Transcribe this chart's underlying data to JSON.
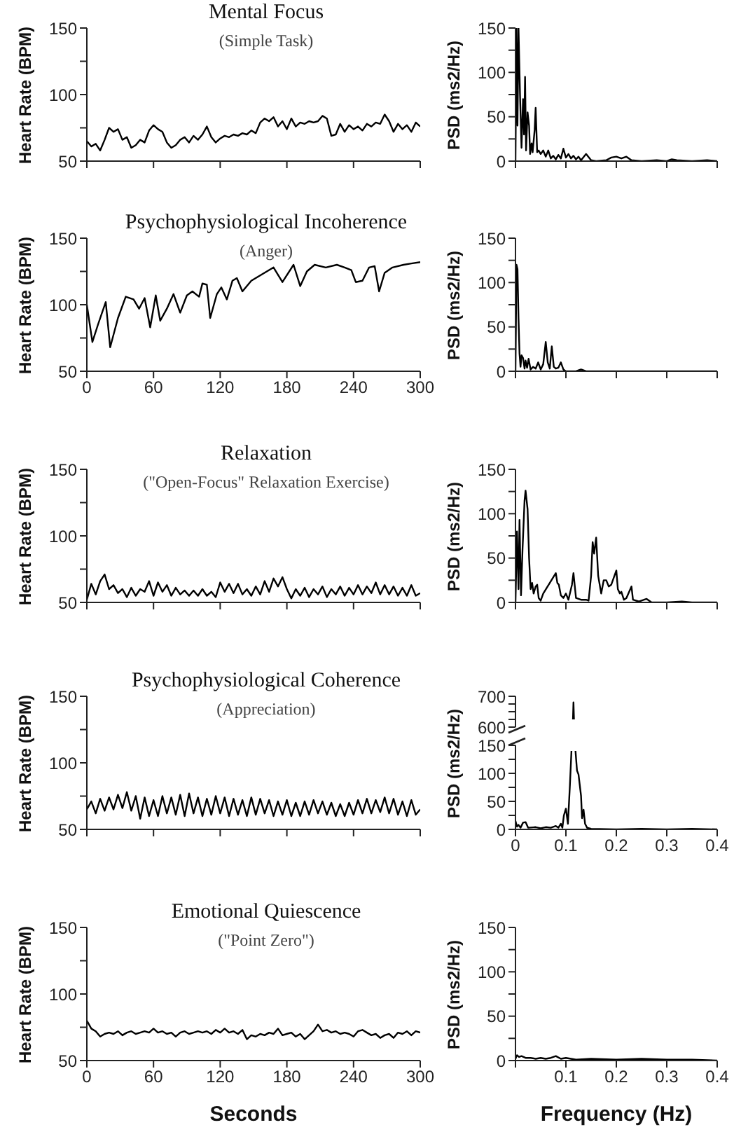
{
  "chart_data": [
    {
      "type": "line",
      "title": "Mental Focus",
      "subtitle": "(Simple Task)",
      "ylabel": "Heart Rate (BPM)",
      "color": "#000000",
      "xlim": [
        0,
        300
      ],
      "xticks": [
        0,
        60,
        120,
        180,
        240,
        300
      ],
      "ylim": [
        50,
        150
      ],
      "yticks": [
        50,
        {
          "value": 75,
          "label": null
        },
        100,
        {
          "value": 125,
          "label": null
        },
        150
      ],
      "tick_labels": "y",
      "x": [
        0,
        4,
        8,
        12,
        16,
        20,
        24,
        28,
        32,
        36,
        40,
        44,
        48,
        52,
        56,
        60,
        64,
        68,
        72,
        76,
        80,
        84,
        88,
        92,
        96,
        100,
        104,
        108,
        112,
        116,
        120,
        124,
        128,
        132,
        136,
        140,
        144,
        148,
        152,
        156,
        160,
        164,
        168,
        172,
        176,
        180,
        184,
        188,
        192,
        196,
        200,
        204,
        208,
        212,
        216,
        220,
        224,
        228,
        232,
        236,
        240,
        244,
        248,
        252,
        256,
        260,
        264,
        268,
        272,
        276,
        280,
        284,
        288,
        292,
        296,
        300
      ],
      "values": [
        65,
        61,
        63,
        58,
        66,
        75,
        72,
        74,
        66,
        68,
        60,
        62,
        66,
        64,
        73,
        77,
        74,
        72,
        64,
        60,
        62,
        66,
        68,
        64,
        69,
        66,
        70,
        76,
        68,
        64,
        67,
        69,
        68,
        70,
        69,
        71,
        70,
        73,
        71,
        79,
        82,
        80,
        83,
        76,
        80,
        74,
        82,
        76,
        79,
        78,
        80,
        79,
        80,
        84,
        82,
        69,
        70,
        78,
        72,
        77,
        74,
        76,
        73,
        78,
        76,
        79,
        78,
        85,
        80,
        72,
        78,
        74,
        77,
        72,
        79,
        76
      ]
    },
    {
      "type": "line",
      "ylabel": "PSD (ms2/Hz)",
      "color": "#000000",
      "xlim": [
        0,
        0.4
      ],
      "xticks": [
        0,
        0.1,
        0.2,
        0.3,
        0.4
      ],
      "ylim": [
        0,
        150
      ],
      "yticks": [
        0,
        {
          "value": 25,
          "label": null
        },
        50,
        {
          "value": 75,
          "label": null
        },
        100,
        {
          "value": 125,
          "label": null
        },
        150
      ],
      "tick_labels": "y",
      "x": [
        0,
        0.002,
        0.004,
        0.006,
        0.009,
        0.012,
        0.015,
        0.017,
        0.019,
        0.021,
        0.024,
        0.027,
        0.029,
        0.032,
        0.034,
        0.038,
        0.04,
        0.043,
        0.046,
        0.05,
        0.055,
        0.06,
        0.065,
        0.07,
        0.075,
        0.08,
        0.085,
        0.09,
        0.095,
        0.1,
        0.105,
        0.11,
        0.115,
        0.12,
        0.125,
        0.13,
        0.14,
        0.15,
        0.16,
        0.18,
        0.19,
        0.2,
        0.21,
        0.22,
        0.23,
        0.25,
        0.28,
        0.3,
        0.31,
        0.32,
        0.35,
        0.38,
        0.4
      ],
      "values": [
        0,
        150,
        40,
        150,
        75,
        15,
        70,
        30,
        95,
        12,
        55,
        40,
        8,
        20,
        10,
        35,
        60,
        10,
        12,
        8,
        12,
        5,
        12,
        3,
        6,
        2,
        7,
        3,
        14,
        4,
        8,
        3,
        6,
        2,
        5,
        1,
        8,
        1,
        0,
        1,
        4,
        5,
        3,
        5,
        1,
        0,
        1,
        0,
        2,
        1,
        0,
        1,
        0
      ]
    },
    {
      "type": "line",
      "title": "Psychophysiological Incoherence",
      "subtitle": "(Anger)",
      "ylabel": "Heart Rate (BPM)",
      "color": "#000000",
      "xlim": [
        0,
        300
      ],
      "xticks": [
        0,
        60,
        120,
        180,
        240,
        300
      ],
      "ylim": [
        50,
        150
      ],
      "yticks": [
        50,
        {
          "value": 75,
          "label": null
        },
        100,
        {
          "value": 125,
          "label": null
        },
        150
      ],
      "x": [
        0,
        5,
        10,
        17,
        21,
        28,
        35,
        42,
        47,
        52,
        57,
        62,
        66,
        72,
        78,
        84,
        90,
        95,
        101,
        104,
        108,
        111,
        117,
        121,
        126,
        131,
        135,
        140,
        148,
        158,
        168,
        176,
        186,
        192,
        198,
        205,
        215,
        225,
        232,
        238,
        242,
        248,
        254,
        259,
        263,
        268,
        275,
        285,
        292,
        300
      ],
      "values": [
        100,
        72,
        85,
        102,
        68,
        90,
        106,
        104,
        97,
        105,
        83,
        107,
        88,
        97,
        108,
        94,
        107,
        110,
        106,
        116,
        115,
        90,
        108,
        113,
        104,
        118,
        120,
        110,
        118,
        123,
        128,
        117,
        130,
        114,
        125,
        130,
        128,
        130,
        128,
        126,
        117,
        118,
        128,
        129,
        110,
        124,
        128,
        130,
        131,
        132
      ]
    },
    {
      "type": "line",
      "ylabel": "PSD (ms2/Hz)",
      "color": "#000000",
      "xlim": [
        0,
        0.4
      ],
      "xticks": [
        0,
        0.1,
        0.2,
        0.3,
        0.4
      ],
      "ylim": [
        0,
        150
      ],
      "yticks": [
        0,
        {
          "value": 25,
          "label": null
        },
        50,
        {
          "value": 75,
          "label": null
        },
        100,
        {
          "value": 125,
          "label": null
        },
        150
      ],
      "tick_labels": "y",
      "x": [
        0,
        0.002,
        0.004,
        0.006,
        0.008,
        0.01,
        0.012,
        0.015,
        0.018,
        0.02,
        0.023,
        0.026,
        0.03,
        0.035,
        0.04,
        0.045,
        0.05,
        0.055,
        0.06,
        0.064,
        0.068,
        0.072,
        0.076,
        0.08,
        0.085,
        0.09,
        0.095,
        0.1,
        0.12,
        0.13,
        0.14,
        0.4
      ],
      "values": [
        0,
        120,
        115,
        60,
        20,
        5,
        18,
        15,
        3,
        12,
        4,
        14,
        2,
        5,
        3,
        10,
        2,
        8,
        33,
        10,
        3,
        28,
        5,
        3,
        4,
        10,
        2,
        0,
        0,
        2,
        0,
        0
      ]
    },
    {
      "type": "line",
      "title": "Relaxation",
      "subtitle": "(\"Open-Focus\" Relaxation Exercise)",
      "ylabel": "Heart Rate (BPM)",
      "color": "#000000",
      "xlim": [
        0,
        300
      ],
      "xticks": [
        0,
        60,
        120,
        180,
        240,
        300
      ],
      "ylim": [
        50,
        150
      ],
      "yticks": [
        50,
        {
          "value": 75,
          "label": null
        },
        100,
        {
          "value": 125,
          "label": null
        },
        150
      ],
      "tick_labels": "y",
      "x": [
        0,
        4,
        8,
        12,
        16,
        20,
        24,
        28,
        32,
        36,
        40,
        44,
        48,
        52,
        56,
        60,
        64,
        68,
        72,
        76,
        80,
        84,
        88,
        92,
        96,
        100,
        104,
        108,
        112,
        116,
        120,
        124,
        128,
        132,
        136,
        140,
        144,
        148,
        152,
        156,
        160,
        164,
        168,
        172,
        176,
        180,
        184,
        188,
        192,
        196,
        200,
        204,
        208,
        212,
        216,
        220,
        224,
        228,
        232,
        236,
        240,
        244,
        248,
        252,
        256,
        260,
        264,
        268,
        272,
        276,
        280,
        284,
        288,
        292,
        296,
        300
      ],
      "values": [
        52,
        64,
        56,
        66,
        71,
        60,
        63,
        57,
        60,
        54,
        61,
        55,
        60,
        58,
        66,
        55,
        65,
        58,
        63,
        55,
        61,
        56,
        59,
        55,
        59,
        55,
        60,
        55,
        58,
        54,
        65,
        58,
        64,
        57,
        64,
        56,
        60,
        55,
        62,
        56,
        66,
        58,
        68,
        62,
        69,
        60,
        53,
        60,
        55,
        61,
        54,
        60,
        56,
        62,
        54,
        60,
        56,
        62,
        55,
        61,
        56,
        63,
        56,
        62,
        57,
        65,
        56,
        63,
        56,
        62,
        55,
        61,
        55,
        63,
        55,
        57
      ]
    },
    {
      "type": "line",
      "ylabel": "PSD (ms2/Hz)",
      "color": "#000000",
      "xlim": [
        0,
        0.4
      ],
      "xticks": [
        0,
        0.1,
        0.2,
        0.3,
        0.4
      ],
      "ylim": [
        0,
        150
      ],
      "yticks": [
        0,
        {
          "value": 25,
          "label": null
        },
        50,
        {
          "value": 75,
          "label": null
        },
        100,
        {
          "value": 125,
          "label": null
        },
        150
      ],
      "tick_labels": "y",
      "x": [
        0,
        0.003,
        0.006,
        0.008,
        0.011,
        0.014,
        0.018,
        0.02,
        0.024,
        0.027,
        0.03,
        0.033,
        0.036,
        0.04,
        0.043,
        0.046,
        0.05,
        0.055,
        0.08,
        0.083,
        0.086,
        0.09,
        0.095,
        0.1,
        0.105,
        0.112,
        0.115,
        0.12,
        0.13,
        0.14,
        0.145,
        0.15,
        0.153,
        0.156,
        0.16,
        0.164,
        0.17,
        0.175,
        0.18,
        0.185,
        0.19,
        0.2,
        0.203,
        0.207,
        0.21,
        0.215,
        0.22,
        0.23,
        0.233,
        0.245,
        0.26,
        0.27,
        0.3,
        0.33,
        0.35,
        0.4
      ],
      "values": [
        0,
        80,
        15,
        93,
        8,
        60,
        115,
        126,
        105,
        50,
        15,
        22,
        10,
        18,
        20,
        5,
        2,
        10,
        33,
        22,
        20,
        8,
        5,
        10,
        3,
        20,
        33,
        5,
        3,
        3,
        2,
        30,
        68,
        55,
        73,
        30,
        10,
        25,
        25,
        18,
        20,
        36,
        15,
        10,
        12,
        3,
        5,
        18,
        3,
        1,
        4,
        0,
        0,
        1,
        0,
        0
      ]
    },
    {
      "type": "line",
      "title": "Psychophysiological Coherence",
      "subtitle": "(Appreciation)",
      "ylabel": "Heart Rate (BPM)",
      "color": "#000000",
      "xlim": [
        0,
        300
      ],
      "xticks": [
        0,
        60,
        120,
        180,
        240,
        300
      ],
      "ylim": [
        50,
        150
      ],
      "yticks": [
        50,
        {
          "value": 75,
          "label": null
        },
        100,
        {
          "value": 125,
          "label": null
        },
        150
      ],
      "tick_labels": "y",
      "x": [
        0,
        4,
        8,
        12,
        16,
        20,
        24,
        28,
        32,
        36,
        40,
        44,
        48,
        52,
        56,
        60,
        64,
        68,
        72,
        76,
        80,
        84,
        88,
        92,
        96,
        100,
        104,
        108,
        112,
        116,
        120,
        124,
        128,
        132,
        136,
        140,
        144,
        148,
        152,
        156,
        160,
        164,
        168,
        172,
        176,
        180,
        184,
        188,
        192,
        196,
        200,
        204,
        208,
        212,
        216,
        220,
        224,
        228,
        232,
        236,
        240,
        244,
        248,
        252,
        256,
        260,
        264,
        268,
        272,
        276,
        280,
        284,
        288,
        292,
        296,
        300
      ],
      "values": [
        65,
        71,
        62,
        73,
        64,
        74,
        65,
        76,
        66,
        78,
        64,
        75,
        58,
        74,
        60,
        72,
        60,
        75,
        62,
        74,
        61,
        76,
        60,
        77,
        62,
        74,
        60,
        73,
        61,
        75,
        62,
        74,
        60,
        73,
        61,
        72,
        60,
        74,
        61,
        73,
        62,
        72,
        60,
        71,
        61,
        72,
        60,
        70,
        60,
        71,
        61,
        72,
        62,
        71,
        61,
        70,
        60,
        69,
        60,
        70,
        61,
        72,
        62,
        73,
        62,
        72,
        63,
        74,
        62,
        73,
        61,
        71,
        60,
        72,
        61,
        65
      ]
    },
    {
      "type": "line",
      "color": "#000000",
      "xlim": [
        0,
        0.4
      ],
      "ylim": [
        600,
        700
      ],
      "yticks": [
        600,
        {
          "value": 625,
          "label": null
        },
        {
          "value": 650,
          "label": null
        },
        {
          "value": 675,
          "label": null
        },
        700
      ],
      "tick_labels": "y",
      "x": [
        0.114,
        0.115,
        0.116
      ],
      "values": [
        625,
        680,
        625
      ]
    },
    {
      "type": "line",
      "ylabel": "PSD (ms2/Hz)",
      "color": "#000000",
      "xlim": [
        0,
        0.4
      ],
      "xticks": [
        0,
        0.1,
        0.2,
        0.3,
        0.4
      ],
      "ylim": [
        0,
        150
      ],
      "yticks": [
        0,
        {
          "value": 25,
          "label": null
        },
        50,
        {
          "value": 75,
          "label": null
        },
        100,
        {
          "value": 125,
          "label": null
        },
        150
      ],
      "x": [
        0,
        0.003,
        0.006,
        0.01,
        0.015,
        0.02,
        0.025,
        0.04,
        0.05,
        0.06,
        0.07,
        0.08,
        0.085,
        0.09,
        0.093,
        0.096,
        0.1,
        0.104,
        0.108,
        0.111,
        0.113,
        0.117,
        0.119,
        0.122,
        0.125,
        0.13,
        0.132,
        0.135,
        0.138,
        0.142,
        0.15,
        0.2,
        0.25,
        0.3,
        0.35,
        0.4
      ],
      "values": [
        15,
        5,
        8,
        3,
        12,
        13,
        3,
        4,
        2,
        4,
        3,
        6,
        3,
        10,
        3,
        25,
        37,
        10,
        80,
        140,
        null,
        null,
        140,
        105,
        98,
        60,
        20,
        35,
        10,
        3,
        1,
        0,
        1,
        0,
        1,
        0
      ]
    },
    {
      "type": "line",
      "title": "Emotional Quiescence",
      "subtitle": "(\"Point Zero\")",
      "ylabel": "Heart Rate (BPM)",
      "xlabel": "Seconds",
      "color": "#000000",
      "xlim": [
        0,
        300
      ],
      "xticks": [
        0,
        60,
        120,
        180,
        240,
        300
      ],
      "ylim": [
        50,
        150
      ],
      "yticks": [
        50,
        {
          "value": 75,
          "label": null
        },
        100,
        {
          "value": 125,
          "label": null
        },
        150
      ],
      "x": [
        0,
        4,
        8,
        12,
        16,
        20,
        24,
        28,
        32,
        36,
        40,
        44,
        48,
        52,
        56,
        60,
        64,
        68,
        72,
        76,
        80,
        84,
        88,
        92,
        96,
        100,
        104,
        108,
        112,
        116,
        120,
        124,
        128,
        132,
        136,
        140,
        144,
        148,
        152,
        156,
        160,
        164,
        168,
        172,
        176,
        180,
        184,
        188,
        192,
        196,
        200,
        204,
        208,
        212,
        216,
        220,
        224,
        228,
        232,
        236,
        240,
        244,
        248,
        252,
        256,
        260,
        264,
        268,
        272,
        276,
        280,
        284,
        288,
        292,
        296,
        300
      ],
      "values": [
        80,
        74,
        72,
        68,
        70,
        71,
        70,
        72,
        69,
        71,
        72,
        70,
        71,
        72,
        71,
        74,
        71,
        72,
        70,
        71,
        68,
        71,
        72,
        70,
        71,
        72,
        71,
        72,
        70,
        73,
        71,
        74,
        71,
        72,
        70,
        73,
        66,
        69,
        68,
        70,
        69,
        71,
        70,
        74,
        69,
        70,
        71,
        68,
        70,
        66,
        69,
        72,
        77,
        72,
        73,
        71,
        72,
        70,
        71,
        70,
        68,
        72,
        73,
        71,
        69,
        70,
        67,
        69,
        70,
        67,
        71,
        70,
        72,
        69,
        72,
        71
      ]
    },
    {
      "type": "line",
      "ylabel": "PSD (ms2/Hz)",
      "xlabel": "Frequency (Hz)",
      "color": "#000000",
      "xlim": [
        0,
        0.4
      ],
      "xticks": [
        {
          "value": 0,
          "label": null
        },
        0.1,
        0.2,
        0.3,
        0.4
      ],
      "ylim": [
        0,
        150
      ],
      "yticks": [
        0,
        {
          "value": 25,
          "label": null
        },
        50,
        {
          "value": 75,
          "label": null
        },
        100,
        {
          "value": 125,
          "label": null
        },
        150
      ],
      "x": [
        0,
        0.003,
        0.007,
        0.012,
        0.02,
        0.03,
        0.04,
        0.05,
        0.06,
        0.07,
        0.08,
        0.09,
        0.1,
        0.12,
        0.15,
        0.2,
        0.25,
        0.3,
        0.35,
        0.4
      ],
      "values": [
        2,
        6,
        4,
        5,
        3,
        3,
        2,
        3,
        2,
        3,
        5,
        2,
        3,
        1,
        2,
        1,
        2,
        1,
        1,
        0
      ]
    }
  ]
}
